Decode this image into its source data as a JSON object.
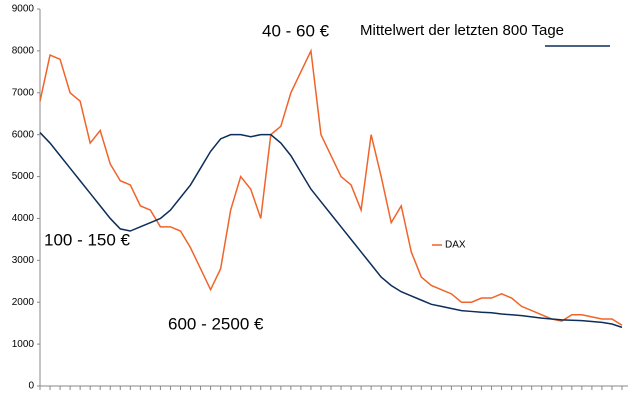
{
  "chart_data": {
    "type": "line",
    "annotations": [
      "40 - 60 €",
      "100 - 150 €",
      "600 - 2500 €"
    ],
    "categories": [
      null,
      null,
      null,
      null,
      null,
      null,
      null,
      null,
      null,
      null,
      null,
      null,
      null,
      null,
      null,
      null,
      null,
      null,
      null,
      null,
      null,
      null,
      null,
      null,
      null,
      null,
      null,
      null,
      null,
      null,
      null,
      null,
      null,
      null,
      null,
      null,
      null,
      null,
      null,
      null,
      null,
      null,
      null,
      null,
      null,
      null,
      null,
      null,
      null,
      null,
      null,
      null,
      null,
      null,
      null,
      null,
      null,
      null,
      null
    ],
    "series": [
      {
        "name": "DAX",
        "color": "#f0642a",
        "values": [
          6800,
          7900,
          7800,
          7000,
          6800,
          5800,
          6100,
          5300,
          4900,
          4800,
          4300,
          4200,
          3800,
          3800,
          3700,
          3300,
          2800,
          2300,
          2800,
          4200,
          5000,
          4700,
          4000,
          6000,
          6200,
          7000,
          7500,
          8000,
          6000,
          5500,
          5000,
          4800,
          4200,
          6000,
          5000,
          3900,
          4300,
          3200,
          2600,
          2400,
          2300,
          2200,
          2000,
          2000,
          2100,
          2100,
          2200,
          2100,
          1900,
          1800,
          1700,
          1600,
          1550,
          1700,
          1700,
          1650,
          1600,
          1600,
          1450
        ]
      },
      {
        "name": "Mittelwert der letzten 800 Tage",
        "color": "#0d2e5a",
        "values": [
          6050,
          5800,
          5500,
          5200,
          4900,
          4600,
          4300,
          4000,
          3750,
          3700,
          3800,
          3900,
          4000,
          4200,
          4500,
          4800,
          5200,
          5600,
          5900,
          6000,
          6000,
          5950,
          6000,
          6000,
          5800,
          5500,
          5100,
          4700,
          4400,
          4100,
          3800,
          3500,
          3200,
          2900,
          2600,
          2400,
          2250,
          2150,
          2050,
          1950,
          1900,
          1850,
          1800,
          1780,
          1760,
          1750,
          1720,
          1700,
          1680,
          1650,
          1620,
          1600,
          1580,
          1570,
          1560,
          1540,
          1520,
          1480,
          1400
        ]
      }
    ],
    "ylim": [
      0,
      9000
    ],
    "yticks": [
      0,
      1000,
      2000,
      3000,
      4000,
      5000,
      6000,
      7000,
      8000,
      9000
    ],
    "grid": false
  }
}
